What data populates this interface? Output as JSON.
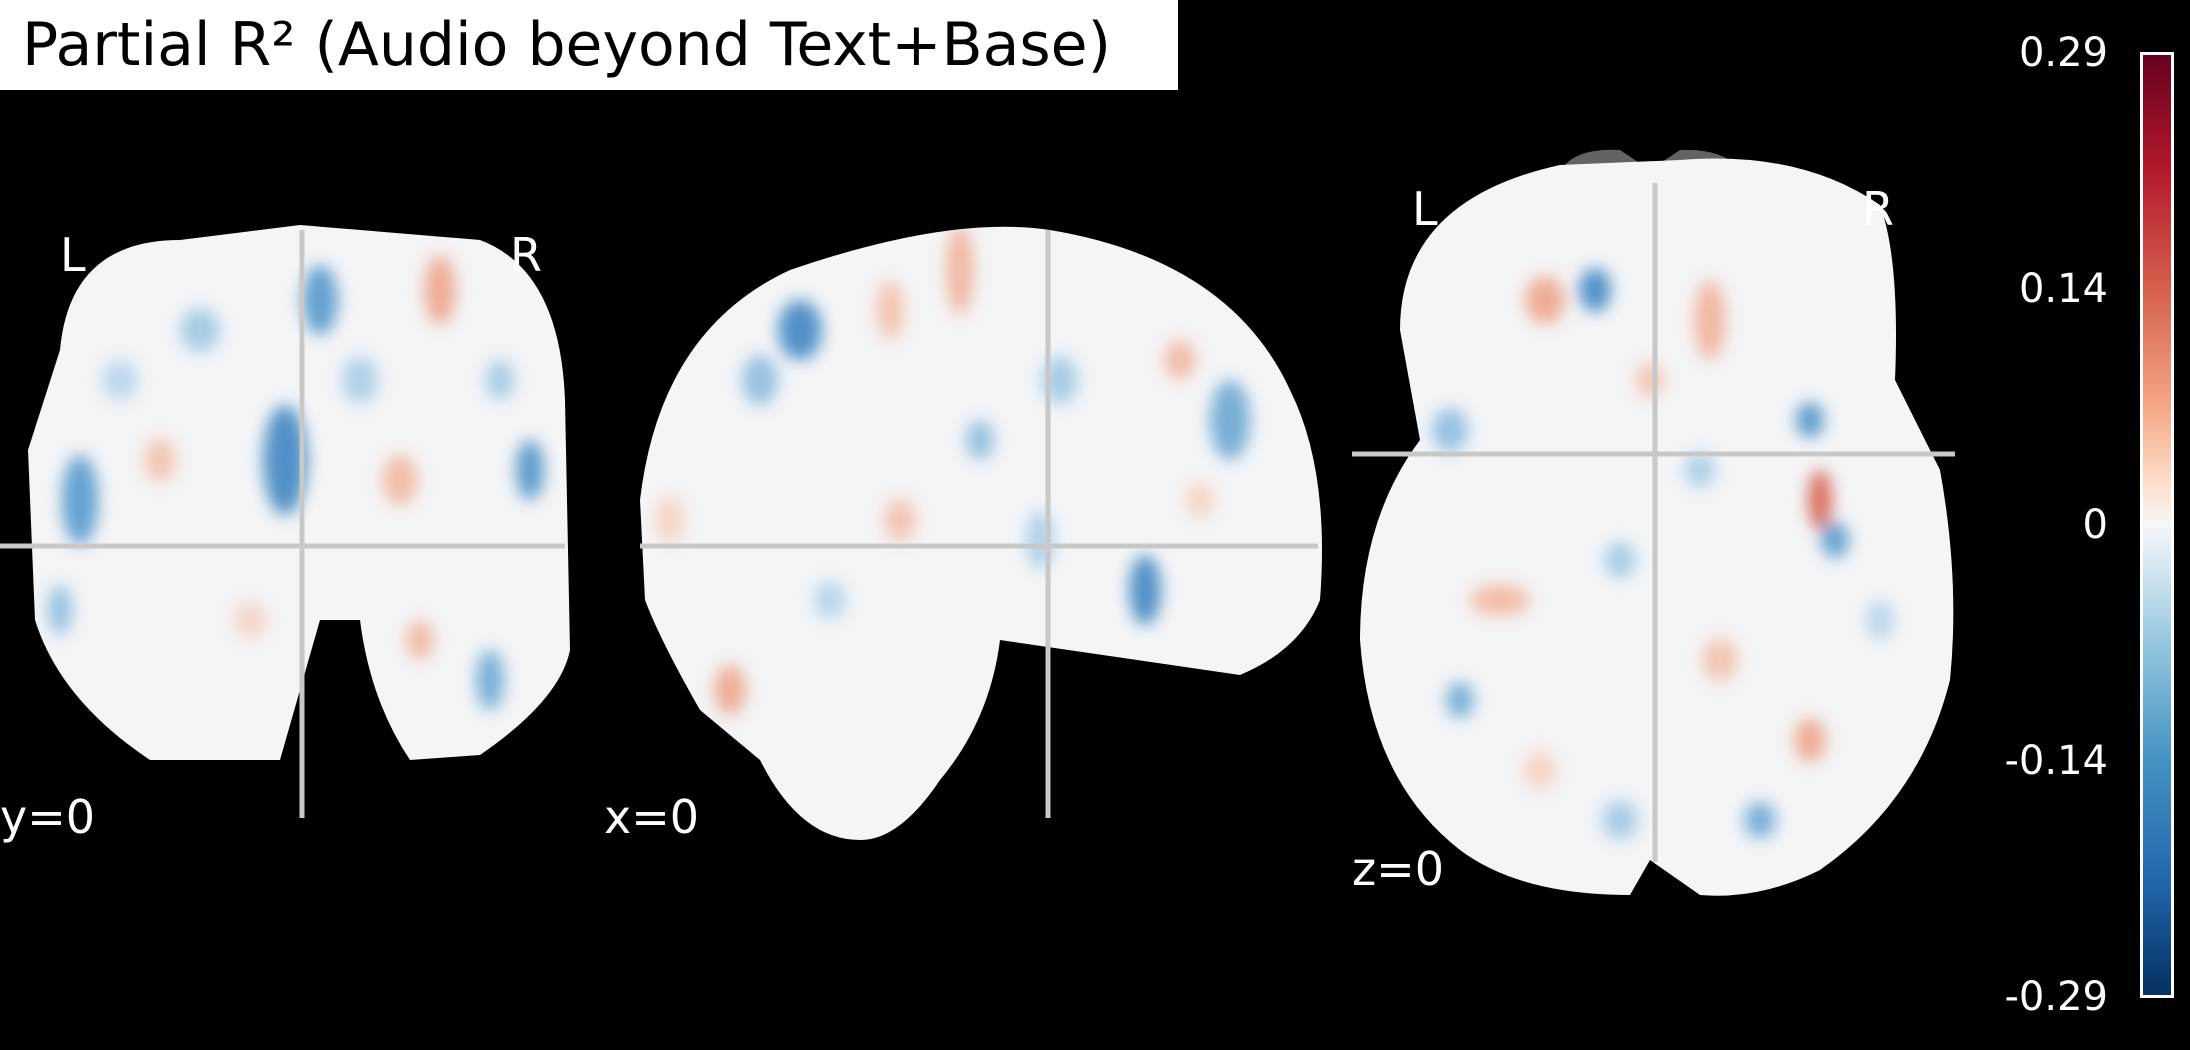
{
  "title": "Partial R² (Audio beyond Text+Base)",
  "views": {
    "coronal": {
      "left_label": "L",
      "right_label": "R",
      "coord": "y=0"
    },
    "sagittal": {
      "coord": "x=0"
    },
    "axial": {
      "left_label": "L",
      "right_label": "R",
      "coord": "z=0"
    }
  },
  "colorbar": {
    "ticks": [
      "0.29",
      "0.14",
      "0",
      "-0.14",
      "-0.29"
    ],
    "colors": {
      "max": "#67001f",
      "mid": "#f7f7f7",
      "min": "#053061"
    }
  }
}
